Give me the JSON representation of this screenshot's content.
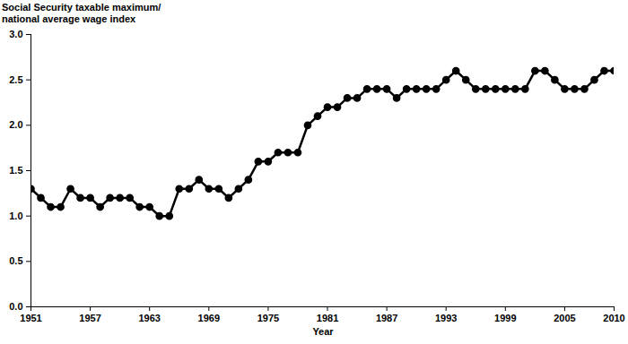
{
  "chart_data": {
    "type": "line",
    "ylabel": [
      "Social Security taxable maximum/",
      "national average wage index"
    ],
    "xlabel": "Year",
    "x": [
      1951,
      1952,
      1953,
      1954,
      1955,
      1956,
      1957,
      1958,
      1959,
      1960,
      1961,
      1962,
      1963,
      1964,
      1965,
      1966,
      1967,
      1968,
      1969,
      1970,
      1971,
      1972,
      1973,
      1974,
      1975,
      1976,
      1977,
      1978,
      1979,
      1980,
      1981,
      1982,
      1983,
      1984,
      1985,
      1986,
      1987,
      1988,
      1989,
      1990,
      1991,
      1992,
      1993,
      1994,
      1995,
      1996,
      1997,
      1998,
      1999,
      2000,
      2001,
      2002,
      2003,
      2004,
      2005,
      2006,
      2007,
      2008,
      2009,
      2010
    ],
    "values": [
      1.3,
      1.2,
      1.1,
      1.1,
      1.3,
      1.2,
      1.2,
      1.1,
      1.2,
      1.2,
      1.2,
      1.1,
      1.1,
      1.0,
      1.0,
      1.3,
      1.3,
      1.4,
      1.3,
      1.3,
      1.2,
      1.3,
      1.4,
      1.6,
      1.6,
      1.7,
      1.7,
      1.7,
      2.0,
      2.1,
      2.2,
      2.2,
      2.3,
      2.3,
      2.4,
      2.4,
      2.4,
      2.3,
      2.4,
      2.4,
      2.4,
      2.4,
      2.5,
      2.6,
      2.5,
      2.4,
      2.4,
      2.4,
      2.4,
      2.4,
      2.4,
      2.6,
      2.6,
      2.5,
      2.4,
      2.4,
      2.4,
      2.5,
      2.6,
      2.6
    ],
    "color": "#000000",
    "marker": "circle",
    "grid": false,
    "xlim": [
      1951,
      2010
    ],
    "xticks": [
      1951,
      1957,
      1963,
      1969,
      1975,
      1981,
      1987,
      1993,
      1999,
      2005,
      2010
    ],
    "ylim": [
      0,
      3
    ],
    "yticks": [
      {
        "value": 0,
        "label": "0.0"
      },
      0.5,
      {
        "value": 1,
        "label": "1.0"
      },
      1.5,
      {
        "value": 2,
        "label": "2.0"
      },
      2.5,
      {
        "value": 3,
        "label": "3.0"
      }
    ]
  }
}
